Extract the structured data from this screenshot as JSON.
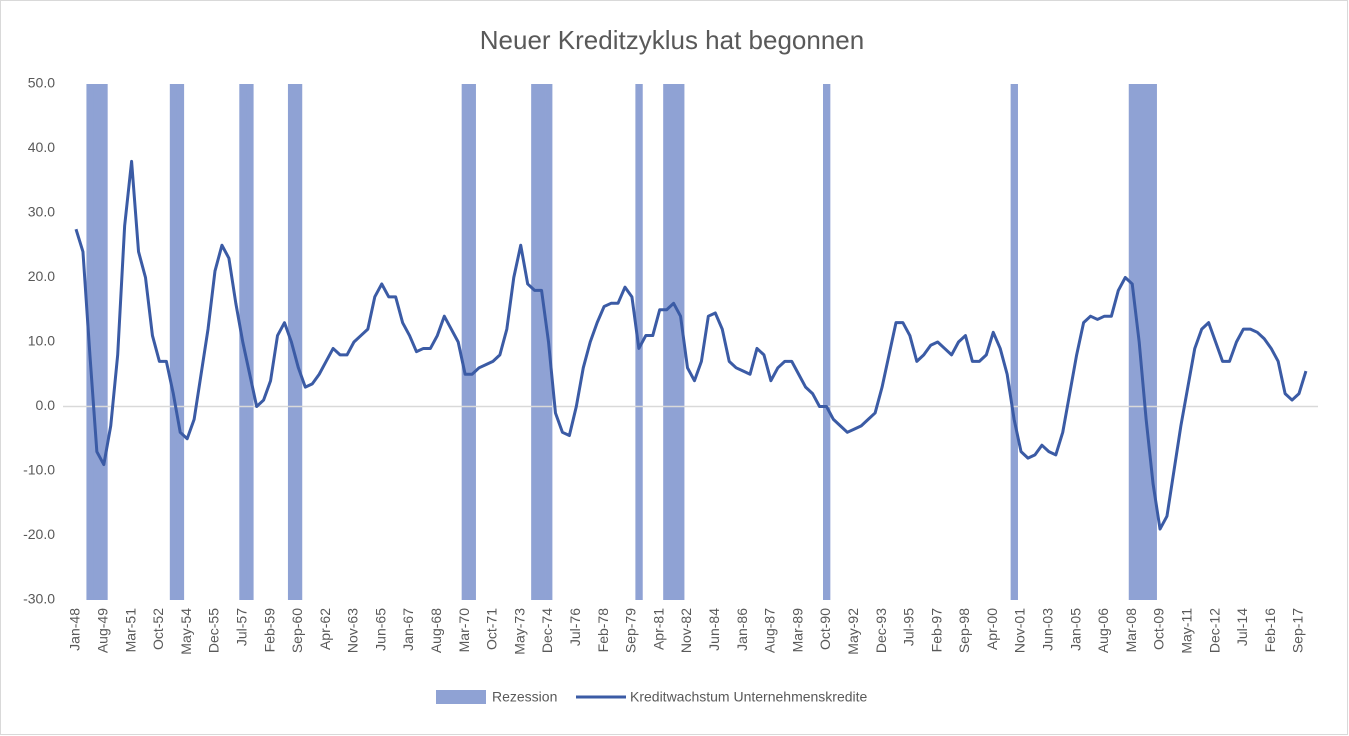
{
  "chart_data": {
    "type": "line",
    "title": "Neuer Kreditzyklus hat begonnen",
    "categories": [
      "Jan-48",
      null,
      null,
      null,
      "Aug-49",
      null,
      null,
      null,
      "Mar-51",
      null,
      null,
      null,
      "Oct-52",
      null,
      null,
      null,
      "May-54",
      null,
      null,
      null,
      "Dec-55",
      null,
      null,
      null,
      "Jul-57",
      null,
      null,
      null,
      "Feb-59",
      null,
      null,
      null,
      "Sep-60",
      null,
      null,
      null,
      "Apr-62",
      null,
      null,
      null,
      "Nov-63",
      null,
      null,
      null,
      "Jun-65",
      null,
      null,
      null,
      "Jan-67",
      null,
      null,
      null,
      "Aug-68",
      null,
      null,
      null,
      "Mar-70",
      null,
      null,
      null,
      "Oct-71",
      null,
      null,
      null,
      "May-73",
      null,
      null,
      null,
      "Dec-74",
      null,
      null,
      null,
      "Jul-76",
      null,
      null,
      null,
      "Feb-78",
      null,
      null,
      null,
      "Sep-79",
      null,
      null,
      null,
      "Apr-81",
      null,
      null,
      null,
      "Nov-82",
      null,
      null,
      null,
      "Jun-84",
      null,
      null,
      null,
      "Jan-86",
      null,
      null,
      null,
      "Aug-87",
      null,
      null,
      null,
      "Mar-89",
      null,
      null,
      null,
      "Oct-90",
      null,
      null,
      null,
      "May-92",
      null,
      null,
      null,
      "Dec-93",
      null,
      null,
      null,
      "Jul-95",
      null,
      null,
      null,
      "Feb-97",
      null,
      null,
      null,
      "Sep-98",
      null,
      null,
      null,
      "Apr-00",
      null,
      null,
      null,
      "Nov-01",
      null,
      null,
      null,
      "Jun-03",
      null,
      null,
      null,
      "Jan-05",
      null,
      null,
      null,
      "Aug-06",
      null,
      null,
      null,
      "Mar-08",
      null,
      null,
      null,
      "Oct-09",
      null,
      null,
      null,
      "May-11",
      null,
      null,
      null,
      "Dec-12",
      null,
      null,
      null,
      "Jul-14",
      null,
      null,
      null,
      "Feb-16",
      null,
      null,
      null,
      "Sep-17",
      null
    ],
    "series": [
      {
        "name": "Rezession",
        "type": "bar",
        "color": "#8fa2d4",
        "values": [
          null,
          null,
          50,
          50,
          50,
          null,
          null,
          null,
          null,
          null,
          null,
          null,
          null,
          null,
          50,
          50,
          null,
          null,
          null,
          null,
          null,
          null,
          null,
          null,
          50,
          50,
          null,
          null,
          null,
          null,
          null,
          50,
          50,
          null,
          null,
          null,
          null,
          null,
          null,
          null,
          null,
          null,
          null,
          null,
          null,
          null,
          null,
          null,
          null,
          null,
          null,
          null,
          null,
          null,
          null,
          null,
          50,
          50,
          null,
          null,
          null,
          null,
          null,
          null,
          null,
          null,
          50,
          50,
          50,
          null,
          null,
          null,
          null,
          null,
          null,
          null,
          null,
          null,
          null,
          null,
          null,
          50,
          null,
          null,
          null,
          50,
          50,
          50,
          null,
          null,
          null,
          null,
          null,
          null,
          null,
          null,
          null,
          null,
          null,
          null,
          null,
          null,
          null,
          null,
          null,
          null,
          null,
          null,
          50,
          null,
          null,
          null,
          null,
          null,
          null,
          null,
          null,
          null,
          null,
          null,
          null,
          null,
          null,
          null,
          null,
          null,
          null,
          null,
          null,
          null,
          null,
          null,
          null,
          null,
          null,
          50,
          null,
          null,
          null,
          null,
          null,
          null,
          null,
          null,
          null,
          null,
          null,
          null,
          null,
          null,
          null,
          null,
          50,
          50,
          50,
          50,
          null,
          null,
          null,
          null,
          null,
          null,
          null,
          null,
          null,
          null,
          null,
          null,
          null,
          null,
          null,
          null,
          null,
          null,
          null,
          null,
          null,
          null
        ]
      },
      {
        "name": "Kreditwachstum Unternehmenskredite",
        "type": "line",
        "color": "#3b5ba5",
        "values": [
          27.5,
          24,
          8,
          -7,
          -9,
          -3,
          8,
          28,
          38,
          24,
          20,
          11,
          7,
          7,
          2,
          -4,
          -5,
          -2,
          5,
          12,
          21,
          25,
          23,
          16,
          10,
          5,
          0,
          1,
          4,
          11,
          13,
          10,
          6,
          3,
          3.5,
          5,
          7,
          9,
          8,
          8,
          10,
          11,
          12,
          17,
          19,
          17,
          17,
          13,
          11,
          8.5,
          9,
          9,
          11,
          14,
          12,
          10,
          5,
          5,
          6,
          6.5,
          7,
          8,
          12,
          20,
          25,
          19,
          18,
          18,
          10,
          -1,
          -4,
          -4.5,
          0,
          6,
          10,
          13,
          15.5,
          16,
          16,
          18.5,
          17,
          9,
          11,
          11,
          15,
          15,
          16,
          14,
          6,
          4,
          7,
          14,
          14.5,
          12,
          7,
          6,
          5.5,
          5,
          9,
          8,
          4,
          6,
          7,
          7,
          5,
          3,
          2,
          0,
          0,
          -2,
          -3,
          -4,
          -3.5,
          -3,
          -2,
          -1,
          3,
          8,
          13,
          13,
          11,
          7,
          8,
          9.5,
          10,
          9,
          8,
          10,
          11,
          7,
          7,
          8,
          11.5,
          9,
          5,
          -2,
          -7,
          -8,
          -7.5,
          -6,
          -7,
          -7.5,
          -4,
          2,
          8,
          13,
          14,
          13.5,
          14,
          14,
          18,
          20,
          19,
          10,
          -2,
          -12,
          -19,
          -17,
          -10,
          -3,
          3,
          9,
          12,
          13,
          10,
          7,
          7,
          10,
          12,
          12,
          11.5,
          10.5,
          9,
          7,
          2,
          1,
          2,
          5.5
        ]
      }
    ],
    "ylim": [
      -30,
      50
    ],
    "yticks": [
      {
        "value": -30,
        "label": "-30.0"
      },
      {
        "value": -20,
        "label": "-20.0"
      },
      {
        "value": -10,
        "label": "-10.0"
      },
      {
        "value": 0,
        "label": "0.0"
      },
      {
        "value": 10,
        "label": "10.0"
      },
      {
        "value": 20,
        "label": "20.0"
      },
      {
        "value": 30,
        "label": "30.0"
      },
      {
        "value": 40,
        "label": "40.0"
      },
      {
        "value": 50,
        "label": "50.0"
      }
    ],
    "grid": false,
    "legend": "bottom"
  }
}
